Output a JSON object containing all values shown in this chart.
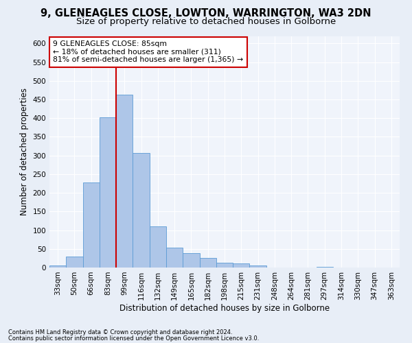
{
  "title1": "9, GLENEAGLES CLOSE, LOWTON, WARRINGTON, WA3 2DN",
  "title2": "Size of property relative to detached houses in Golborne",
  "xlabel": "Distribution of detached houses by size in Golborne",
  "ylabel": "Number of detached properties",
  "footnote1": "Contains HM Land Registry data © Crown copyright and database right 2024.",
  "footnote2": "Contains public sector information licensed under the Open Government Licence v3.0.",
  "bar_labels": [
    "33sqm",
    "50sqm",
    "66sqm",
    "83sqm",
    "99sqm",
    "116sqm",
    "132sqm",
    "149sqm",
    "165sqm",
    "182sqm",
    "198sqm",
    "215sqm",
    "231sqm",
    "248sqm",
    "264sqm",
    "281sqm",
    "297sqm",
    "314sqm",
    "330sqm",
    "347sqm",
    "363sqm"
  ],
  "bar_values": [
    5,
    30,
    228,
    403,
    463,
    307,
    110,
    53,
    39,
    26,
    12,
    11,
    6,
    0,
    0,
    0,
    2,
    0,
    0,
    0,
    0
  ],
  "bar_color": "#aec6e8",
  "bar_edge_color": "#5b9bd5",
  "annotation_line1": "9 GLENEAGLES CLOSE: 85sqm",
  "annotation_line2": "← 18% of detached houses are smaller (311)",
  "annotation_line3": "81% of semi-detached houses are larger (1,365) →",
  "annotation_box_color": "#ffffff",
  "annotation_box_edge": "#cc0000",
  "vline_color": "#cc0000",
  "vline_x_index": 3,
  "ylim": [
    0,
    620
  ],
  "yticks": [
    0,
    50,
    100,
    150,
    200,
    250,
    300,
    350,
    400,
    450,
    500,
    550,
    600
  ],
  "bg_color": "#e8eef7",
  "plot_bg_color": "#f0f4fb",
  "title1_fontsize": 10.5,
  "title2_fontsize": 9.5,
  "axis_label_fontsize": 8.5,
  "tick_fontsize": 7.5,
  "annotation_fontsize": 7.8,
  "footnote_fontsize": 6.0
}
